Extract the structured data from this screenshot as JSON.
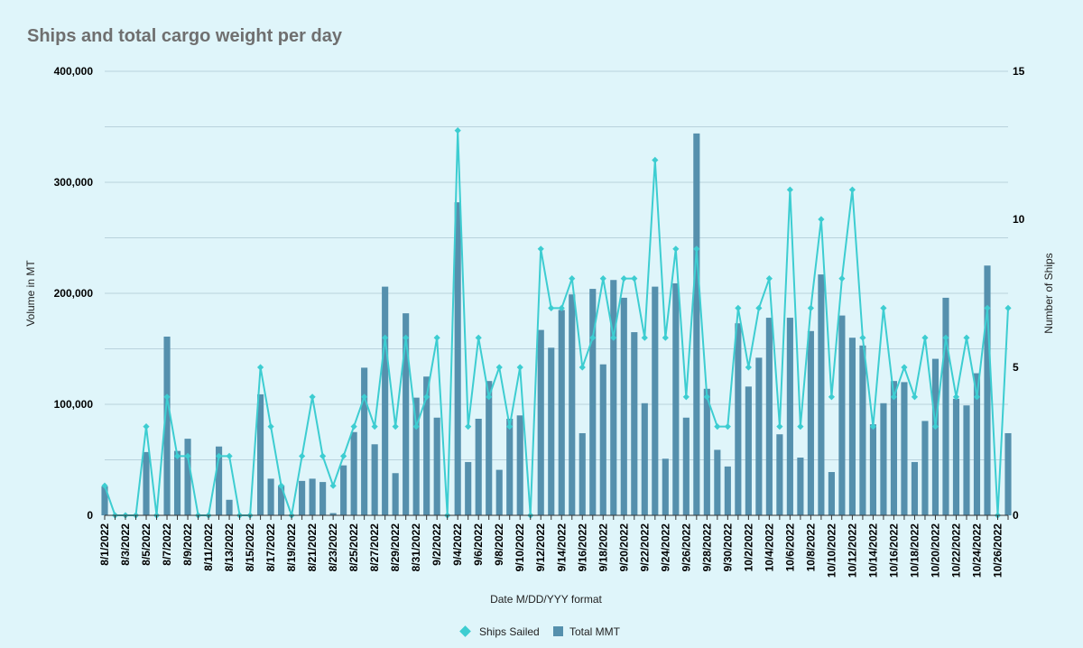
{
  "chart_data": {
    "type": "bar",
    "title": "Ships and total cargo weight per day",
    "xlabel": "Date M/DD/YYY format",
    "ylabel": "Volume in MT",
    "y2label": "Number of Ships",
    "ylim": [
      0,
      400000
    ],
    "y2lim": [
      0,
      15
    ],
    "y_ticks": [
      "0",
      "100,000",
      "200,000",
      "300,000",
      "400,000"
    ],
    "y2_ticks": [
      "0",
      "5",
      "10",
      "15"
    ],
    "y_tick_values": [
      0,
      100000,
      200000,
      300000,
      400000
    ],
    "y2_tick_values": [
      0,
      5,
      10,
      15
    ],
    "grid": true,
    "legend_position": "bottom",
    "categories": [
      "8/1/2022",
      "8/2/2022",
      "8/3/2022",
      "8/4/2022",
      "8/5/2022",
      "8/6/2022",
      "8/7/2022",
      "8/8/2022",
      "8/9/2022",
      "8/10/2022",
      "8/11/2022",
      "8/12/2022",
      "8/13/2022",
      "8/14/2022",
      "8/15/2022",
      "8/16/2022",
      "8/17/2022",
      "8/18/2022",
      "8/19/2022",
      "8/20/2022",
      "8/21/2022",
      "8/22/2022",
      "8/23/2022",
      "8/24/2022",
      "8/25/2022",
      "8/26/2022",
      "8/27/2022",
      "8/28/2022",
      "8/29/2022",
      "8/30/2022",
      "8/31/2022",
      "9/1/2022",
      "9/2/2022",
      "9/3/2022",
      "9/4/2022",
      "9/5/2022",
      "9/6/2022",
      "9/7/2022",
      "9/8/2022",
      "9/9/2022",
      "9/10/2022",
      "9/11/2022",
      "9/12/2022",
      "9/13/2022",
      "9/14/2022",
      "9/15/2022",
      "9/16/2022",
      "9/17/2022",
      "9/18/2022",
      "9/19/2022",
      "9/20/2022",
      "9/21/2022",
      "9/22/2022",
      "9/23/2022",
      "9/24/2022",
      "9/25/2022",
      "9/26/2022",
      "9/27/2022",
      "9/28/2022",
      "9/29/2022",
      "9/30/2022",
      "10/1/2022",
      "10/2/2022",
      "10/3/2022",
      "10/4/2022",
      "10/5/2022",
      "10/6/2022",
      "10/7/2022",
      "10/8/2022",
      "10/9/2022",
      "10/10/2022",
      "10/11/2022",
      "10/12/2022",
      "10/13/2022",
      "10/14/2022",
      "10/15/2022",
      "10/16/2022",
      "10/17/2022",
      "10/18/2022",
      "10/19/2022",
      "10/20/2022",
      "10/21/2022",
      "10/22/2022",
      "10/23/2022",
      "10/24/2022",
      "10/25/2022",
      "10/26/2022",
      "10/27/2022"
    ],
    "x_tick_labels": [
      "8/1/2022",
      "8/3/2022",
      "8/5/2022",
      "8/7/2022",
      "8/9/2022",
      "8/11/2022",
      "8/13/2022",
      "8/15/2022",
      "8/17/2022",
      "8/19/2022",
      "8/21/2022",
      "8/23/2022",
      "8/25/2022",
      "8/27/2022",
      "8/29/2022",
      "8/31/2022",
      "9/2/2022",
      "9/4/2022",
      "9/6/2022",
      "9/8/2022",
      "9/10/2022",
      "9/12/2022",
      "9/14/2022",
      "9/16/2022",
      "9/18/2022",
      "9/20/2022",
      "9/22/2022",
      "9/24/2022",
      "9/26/2022",
      "9/28/2022",
      "9/30/2022",
      "10/2/2022",
      "10/4/2022",
      "10/6/2022",
      "10/8/2022",
      "10/10/2022",
      "10/12/2022",
      "10/14/2022",
      "10/16/2022",
      "10/18/2022",
      "10/20/2022",
      "10/22/2022",
      "10/24/2022",
      "10/26/2022"
    ],
    "series": [
      {
        "name": "Total MMT",
        "kind": "bar",
        "axis": "left",
        "color": "#5590ad",
        "values": [
          26000,
          0,
          0,
          0,
          57000,
          0,
          161000,
          58000,
          69000,
          0,
          0,
          62000,
          14000,
          0,
          0,
          109000,
          33000,
          27000,
          0,
          31000,
          33000,
          30000,
          2000,
          45000,
          75000,
          133000,
          64000,
          206000,
          38000,
          182000,
          106000,
          125000,
          88000,
          0,
          282000,
          48000,
          87000,
          121000,
          41000,
          87000,
          90000,
          0,
          167000,
          151000,
          185000,
          199000,
          74000,
          204000,
          136000,
          212000,
          196000,
          165000,
          101000,
          206000,
          51000,
          209000,
          88000,
          344000,
          114000,
          59000,
          44000,
          173000,
          116000,
          142000,
          178000,
          73000,
          178000,
          52000,
          166000,
          217000,
          39000,
          180000,
          160000,
          153000,
          82000,
          101000,
          121000,
          120000,
          48000,
          85000,
          141000,
          196000,
          105000,
          99000,
          128000,
          225000,
          0,
          74000
        ]
      },
      {
        "name": "Ships Sailed",
        "kind": "line",
        "axis": "right",
        "color": "#3dcdd1",
        "values": [
          1,
          0,
          0,
          0,
          3,
          0,
          4,
          2,
          2,
          0,
          0,
          2,
          2,
          0,
          0,
          5,
          3,
          1,
          0,
          2,
          4,
          2,
          1,
          2,
          3,
          4,
          3,
          6,
          3,
          6,
          3,
          4,
          6,
          0,
          13,
          3,
          6,
          4,
          5,
          3,
          5,
          0,
          9,
          7,
          7,
          8,
          5,
          6,
          8,
          6,
          8,
          8,
          6,
          12,
          6,
          9,
          4,
          9,
          4,
          3,
          3,
          7,
          5,
          7,
          8,
          3,
          11,
          3,
          7,
          10,
          4,
          8,
          11,
          6,
          3,
          7,
          4,
          5,
          4,
          6,
          3,
          6,
          4,
          6,
          4,
          7,
          0,
          7
        ]
      }
    ]
  }
}
